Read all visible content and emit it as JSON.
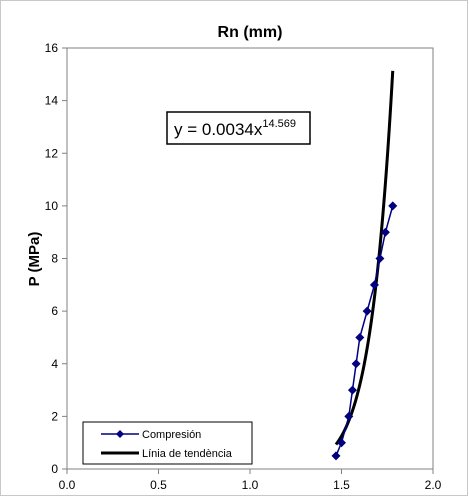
{
  "chart_data": {
    "type": "scatter",
    "title": "Rn (mm)",
    "xlabel": "",
    "ylabel": "P (MPa)",
    "xlim": [
      0,
      2
    ],
    "ylim": [
      0,
      16
    ],
    "xticks": [
      "0.0",
      "0.5",
      "1.0",
      "1.5",
      "2.0"
    ],
    "yticks": [
      "0",
      "2",
      "4",
      "6",
      "8",
      "10",
      "12",
      "14",
      "16"
    ],
    "grid": false,
    "legend_position": "bottom-left",
    "series": [
      {
        "name": "Compresión",
        "kind": "line-markers",
        "color": "#000080",
        "x": [
          1.47,
          1.5,
          1.54,
          1.56,
          1.58,
          1.6,
          1.64,
          1.68,
          1.71,
          1.74,
          1.78
        ],
        "y": [
          0.5,
          1,
          2,
          3,
          4,
          5,
          6,
          7,
          8,
          9,
          10
        ]
      },
      {
        "name": "Línia de tendència",
        "kind": "trendline",
        "color": "#000000",
        "coef": 0.0034,
        "exponent": 14.569,
        "x_range": [
          1.47,
          1.78
        ]
      }
    ],
    "annotation": {
      "prefix": "y = 0.0034x",
      "superscript": "14.569"
    }
  }
}
